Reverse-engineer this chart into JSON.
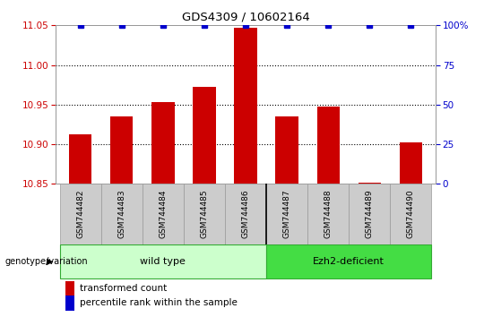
{
  "title": "GDS4309 / 10602164",
  "categories": [
    "GSM744482",
    "GSM744483",
    "GSM744484",
    "GSM744485",
    "GSM744486",
    "GSM744487",
    "GSM744488",
    "GSM744489",
    "GSM744490"
  ],
  "bar_values": [
    10.912,
    10.935,
    10.953,
    10.972,
    11.047,
    10.935,
    10.947,
    10.851,
    10.902
  ],
  "percentile_values": [
    100,
    100,
    100,
    100,
    100,
    100,
    100,
    100,
    100
  ],
  "ylim_left": [
    10.85,
    11.05
  ],
  "ylim_right": [
    0,
    100
  ],
  "yticks_left": [
    10.85,
    10.9,
    10.95,
    11.0,
    11.05
  ],
  "yticks_right": [
    0,
    25,
    50,
    75,
    100
  ],
  "bar_color": "#cc0000",
  "percentile_color": "#0000cc",
  "grid_color": "#000000",
  "wild_type_label": "wild type",
  "ezh2_label": "Ezh2-deficient",
  "wild_type_color": "#ccffcc",
  "ezh2_color": "#44dd44",
  "group_label": "genotype/variation",
  "legend_bar_label": "transformed count",
  "legend_percentile_label": "percentile rank within the sample",
  "tick_label_color_left": "#cc0000",
  "tick_label_color_right": "#0000cc",
  "bar_bottom": 10.85,
  "xlabel_bg_color": "#cccccc",
  "xlabel_edge_color": "#999999",
  "grid_ticks": [
    10.9,
    10.95,
    11.0
  ],
  "wt_count": 5,
  "ezh2_count": 4
}
